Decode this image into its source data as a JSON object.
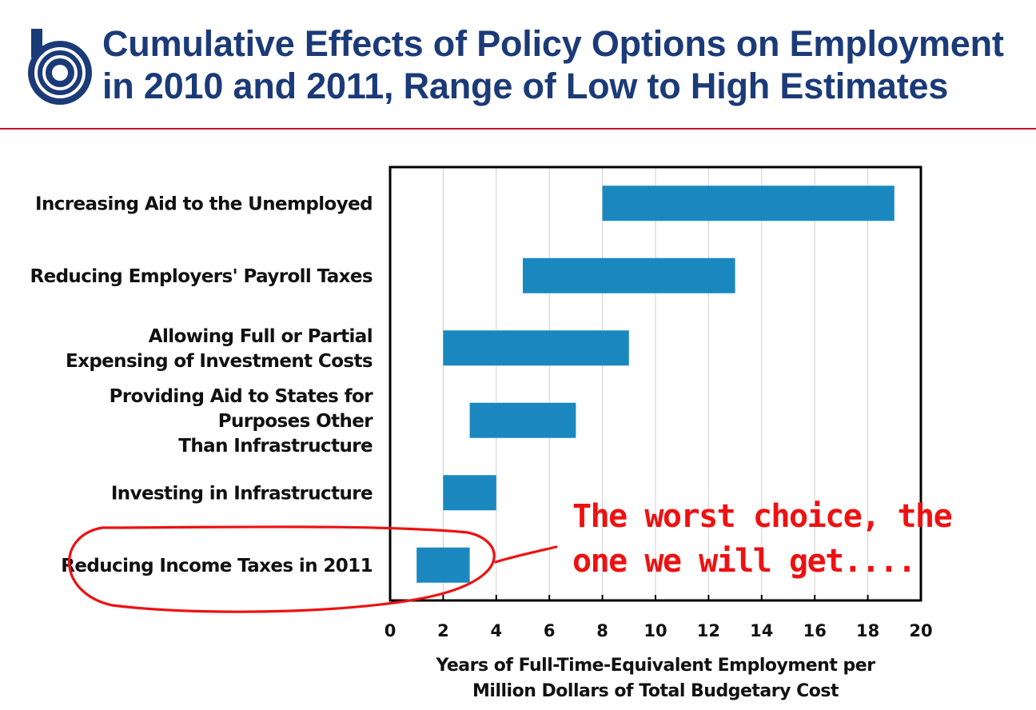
{
  "header": {
    "title_line1": "Cumulative Effects of Policy Options on Employment",
    "title_line2": "in 2010 and 2011, Range of Low to High Estimates",
    "logo_icon": "cbo-logo-icon",
    "title_color": "#1b3a78",
    "rule_color": "#c8102e"
  },
  "chart_data": {
    "type": "bar",
    "orientation": "horizontal-range",
    "xlabel_line1": "Years of Full-Time-Equivalent Employment per",
    "xlabel_line2": "Million Dollars of Total Budgetary Cost",
    "xlim": [
      0,
      20
    ],
    "xticks": [
      "0",
      "2",
      "4",
      "6",
      "8",
      "10",
      "12",
      "14",
      "16",
      "18",
      "20"
    ],
    "grid": "vertical",
    "bar_color": "#1a88bf",
    "categories": [
      {
        "label_lines": [
          "Increasing Aid to the Unemployed"
        ],
        "low": 8,
        "high": 19
      },
      {
        "label_lines": [
          "Reducing Employers' Payroll Taxes"
        ],
        "low": 5,
        "high": 13
      },
      {
        "label_lines": [
          "Allowing Full or Partial",
          "Expensing of Investment Costs"
        ],
        "low": 2,
        "high": 9
      },
      {
        "label_lines": [
          "Providing Aid to States for",
          "Purposes Other",
          "Than Infrastructure"
        ],
        "low": 3,
        "high": 7
      },
      {
        "label_lines": [
          "Investing in Infrastructure"
        ],
        "low": 2,
        "high": 4
      },
      {
        "label_lines": [
          "Reducing Income Taxes in 2011"
        ],
        "low": 1,
        "high": 3
      }
    ]
  },
  "annotation": {
    "line1": "The worst choice, the",
    "line2": "one we will get....",
    "color": "#ee1111",
    "highlighted_category": "Reducing Income Taxes in 2011"
  }
}
